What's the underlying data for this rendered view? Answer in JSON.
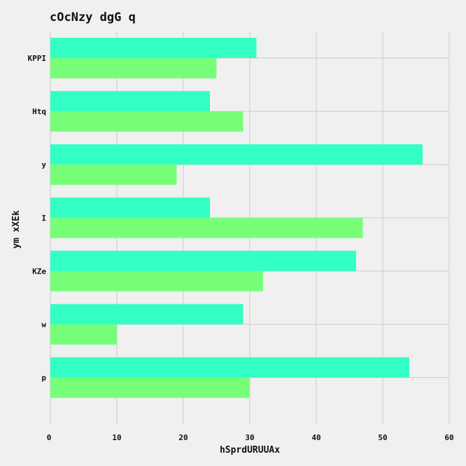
{
  "chart_data": {
    "type": "bar",
    "orientation": "horizontal",
    "title": "cOcNzy dgG q",
    "xlabel": "hSprdURUUAx",
    "ylabel": "ym xXEk",
    "categories": [
      "KPPI",
      "Htq",
      "y",
      "I",
      "KZe",
      "w",
      "p"
    ],
    "series": [
      {
        "color": "#33ffc4",
        "values": [
          31,
          24,
          56,
          24,
          46,
          29,
          54
        ]
      },
      {
        "color": "#77ff7a",
        "values": [
          25,
          29,
          19,
          47,
          32,
          10,
          30
        ]
      }
    ],
    "xlim": [
      0,
      60
    ],
    "xticks": [
      0,
      10,
      20,
      30,
      40,
      50,
      60
    ],
    "grid": true,
    "legend": "none",
    "background": "#f0f0f0"
  }
}
